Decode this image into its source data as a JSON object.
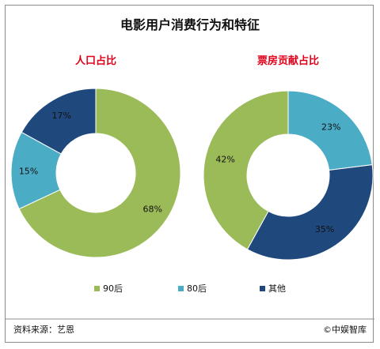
{
  "colors": {
    "90后": "#9bbb59",
    "80后": "#4bacc6",
    "其他": "#1f497d",
    "subtitle": "#e0001a",
    "frame": "#8c8c8c"
  },
  "chart_data": {
    "title": "电影用户消费行为和特征",
    "legend": [
      "90后",
      "80后",
      "其他"
    ],
    "legend_position": "bottom",
    "charts": [
      {
        "type": "pie",
        "subtitle": "人口占比",
        "categories": [
          "90后",
          "80后",
          "其他"
        ],
        "values": [
          68,
          15,
          17
        ],
        "labels": [
          "68%",
          "15%",
          "17%"
        ]
      },
      {
        "type": "pie",
        "subtitle": "票房贡献占比",
        "categories": [
          "80后",
          "其他",
          "90后"
        ],
        "values": [
          23,
          35,
          42
        ],
        "labels": [
          "23%",
          "35%",
          "42%"
        ]
      }
    ]
  },
  "footer": {
    "source": "资料来源：艺恩",
    "copyright": "©中娱智库"
  }
}
